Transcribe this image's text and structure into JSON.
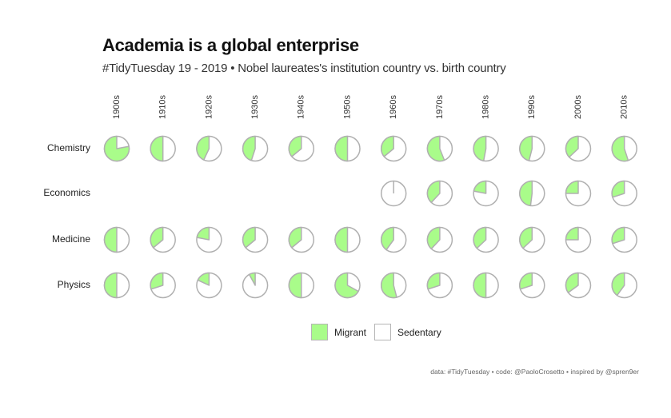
{
  "title": "Academia is a global enterprise",
  "subtitle": "#TidyTuesday 19 - 2019 • Nobel laureates's institution country vs. birth country",
  "caption": "data: #TidyTuesday • code: @PaoloCrosetto • inspired by @spren9er",
  "colors": {
    "migrant": "#a9fc8a",
    "sedentary": "#ffffff",
    "outline": "#b0b0b0"
  },
  "chart_data": {
    "type": "pie",
    "description_type": "small-multiple pie grid",
    "decades": [
      "1900s",
      "1910s",
      "1920s",
      "1930s",
      "1940s",
      "1950s",
      "1960s",
      "1970s",
      "1980s",
      "1990s",
      "2000s",
      "2010s"
    ],
    "categories": [
      "Chemistry",
      "Economics",
      "Medicine",
      "Physics"
    ],
    "legend": [
      {
        "key": "migrant",
        "label": "Migrant"
      },
      {
        "key": "sedentary",
        "label": "Sedentary"
      }
    ],
    "migrant_share": {
      "Chemistry": [
        0.78,
        0.5,
        0.43,
        0.45,
        0.36,
        0.5,
        0.36,
        0.56,
        0.47,
        0.46,
        0.37,
        0.55
      ],
      "Economics": [
        null,
        null,
        null,
        null,
        null,
        null,
        0.0,
        0.38,
        0.22,
        0.48,
        0.25,
        0.3
      ],
      "Medicine": [
        0.5,
        0.36,
        0.22,
        0.36,
        0.36,
        0.5,
        0.4,
        0.38,
        0.37,
        0.37,
        0.25,
        0.3
      ],
      "Physics": [
        0.5,
        0.3,
        0.18,
        0.08,
        0.5,
        0.67,
        0.54,
        0.3,
        0.5,
        0.3,
        0.35,
        0.4
      ]
    }
  }
}
